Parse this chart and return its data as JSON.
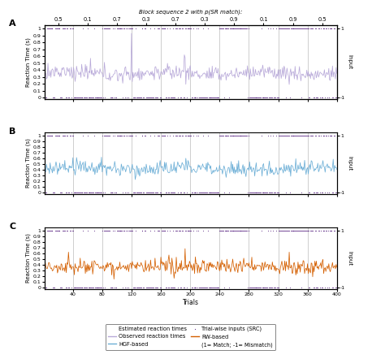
{
  "title_A": "Block sequence 2 with p(SR match):",
  "block_labels": [
    "0.5",
    "0.1",
    "0.7",
    "0.3",
    "0.7",
    "0.3",
    "0.9",
    "0.1",
    "0.9",
    "0.5"
  ],
  "block_boundaries": [
    0,
    40,
    80,
    120,
    160,
    200,
    240,
    280,
    320,
    360,
    400
  ],
  "block_centers": [
    20,
    60,
    100,
    140,
    180,
    220,
    260,
    300,
    340,
    380
  ],
  "n_trials": 400,
  "yticks": [
    0,
    0.1,
    0.2,
    0.3,
    0.4,
    0.5,
    0.6,
    0.7,
    0.8,
    0.9,
    1.0
  ],
  "yticklabels": [
    "0",
    "0.1",
    "0.2",
    "0.3",
    "0.4",
    "0.5",
    "0.6",
    "0.7",
    "0.8",
    "0.9",
    "1"
  ],
  "xticks": [
    40,
    80,
    120,
    160,
    200,
    240,
    280,
    320,
    360,
    400
  ],
  "xlabel": "Trials",
  "ylabel": "Reaction Time (s)",
  "color_A": "#b8a9d9",
  "color_B": "#6baed6",
  "color_C": "#d45f00",
  "color_dot": "#3d006e",
  "panel_letters": [
    "A",
    "B",
    "C"
  ],
  "input_label": "Input",
  "block_vline_color": "#aaaaaa",
  "legend_col1": [
    "Estimated reaction times",
    "HGF-based",
    "RW-based"
  ],
  "legend_col2": [
    "Observed reaction times",
    "Trial-wise inputs (SRC)",
    "(1= Match; -1= Mismatch)"
  ]
}
